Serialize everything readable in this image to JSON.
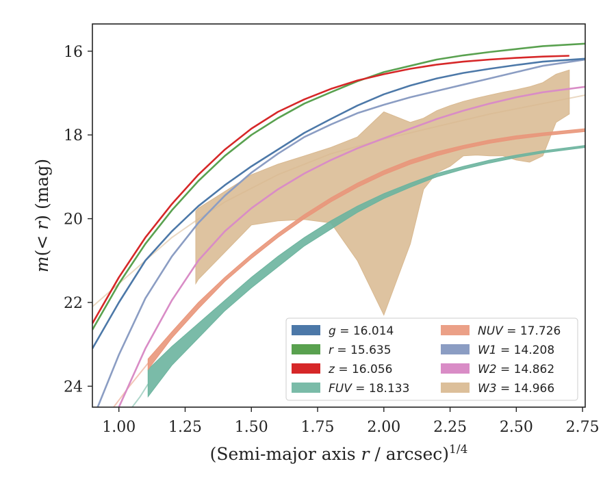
{
  "chart_data": {
    "type": "line",
    "xlabel": "(Semi-major axis ",
    "xlabel_var": "r",
    "xlabel_tail": " / arcsec)",
    "xlabel_sup": "1/4",
    "ylabel_pre": "m(< ",
    "ylabel_var": "r",
    "ylabel_post": ") (mag)",
    "xlim": [
      0.9,
      2.76
    ],
    "ylim": [
      24.5,
      15.35
    ],
    "y_inverted": true,
    "x_ticks": [
      "1.00",
      "1.25",
      "1.50",
      "1.75",
      "2.00",
      "2.25",
      "2.50",
      "2.75"
    ],
    "y_ticks": [
      "16",
      "18",
      "20",
      "22",
      "24"
    ],
    "legend_placement": "lower-right",
    "grid": false,
    "series": [
      {
        "name": "g = 16.014",
        "var": "g",
        "value": "16.014",
        "color": "#4c78a8",
        "kind": "line",
        "legend_col": 0,
        "x": [
          0.9,
          1.0,
          1.1,
          1.2,
          1.3,
          1.4,
          1.5,
          1.6,
          1.7,
          1.8,
          1.9,
          2.0,
          2.1,
          2.2,
          2.3,
          2.4,
          2.5,
          2.6,
          2.76
        ],
        "y": [
          23.1,
          22.0,
          21.0,
          20.3,
          19.7,
          19.2,
          18.75,
          18.35,
          17.95,
          17.62,
          17.3,
          17.03,
          16.82,
          16.65,
          16.52,
          16.42,
          16.33,
          16.25,
          16.18
        ]
      },
      {
        "name": "r = 15.635",
        "var": "r",
        "value": "15.635",
        "color": "#59a14f",
        "kind": "line",
        "legend_col": 0,
        "x": [
          0.9,
          1.0,
          1.1,
          1.2,
          1.3,
          1.4,
          1.5,
          1.6,
          1.7,
          1.8,
          1.9,
          2.0,
          2.1,
          2.2,
          2.3,
          2.4,
          2.5,
          2.6,
          2.76
        ],
        "y": [
          22.65,
          21.55,
          20.6,
          19.8,
          19.1,
          18.5,
          18.0,
          17.6,
          17.25,
          16.98,
          16.72,
          16.5,
          16.35,
          16.2,
          16.1,
          16.02,
          15.95,
          15.88,
          15.82
        ]
      },
      {
        "name": "z = 16.056",
        "var": "z",
        "value": "16.056",
        "color": "#d62728",
        "kind": "line",
        "legend_col": 0,
        "x": [
          0.9,
          1.0,
          1.1,
          1.2,
          1.3,
          1.4,
          1.5,
          1.6,
          1.7,
          1.8,
          1.9,
          2.0,
          2.1,
          2.2,
          2.3,
          2.4,
          2.5,
          2.6,
          2.7
        ],
        "y": [
          22.5,
          21.4,
          20.45,
          19.65,
          18.95,
          18.35,
          17.85,
          17.45,
          17.15,
          16.9,
          16.7,
          16.55,
          16.42,
          16.32,
          16.25,
          16.2,
          16.16,
          16.13,
          16.11
        ]
      },
      {
        "name": "FUV = 18.133",
        "var": "FUV",
        "value": "18.133",
        "color": "#6cb49e",
        "kind": "band",
        "legend_col": 0,
        "x": [
          1.11,
          1.2,
          1.3,
          1.4,
          1.5,
          1.6,
          1.7,
          1.8,
          1.9,
          2.0,
          2.1,
          2.2,
          2.3,
          2.4,
          2.5,
          2.6,
          2.76
        ],
        "y_low": [
          23.6,
          23.05,
          22.5,
          21.95,
          21.4,
          20.9,
          20.45,
          20.05,
          19.7,
          19.4,
          19.15,
          18.92,
          18.75,
          18.6,
          18.48,
          18.38,
          18.25
        ],
        "y_high": [
          24.25,
          23.5,
          22.85,
          22.2,
          21.65,
          21.15,
          20.65,
          20.25,
          19.85,
          19.52,
          19.25,
          19.0,
          18.82,
          18.67,
          18.54,
          18.43,
          18.3
        ],
        "ext_x": [
          1.05,
          1.08,
          1.11
        ],
        "ext_y": [
          24.5,
          24.25,
          23.95
        ]
      },
      {
        "name": "NUV = 17.726",
        "var": "NUV",
        "value": "17.726",
        "color": "#e9967a",
        "kind": "band",
        "legend_col": 1,
        "x": [
          1.11,
          1.2,
          1.3,
          1.4,
          1.5,
          1.6,
          1.7,
          1.8,
          1.9,
          2.0,
          2.1,
          2.2,
          2.3,
          2.4,
          2.5,
          2.6,
          2.76
        ],
        "y_low": [
          23.35,
          22.7,
          22.0,
          21.4,
          20.85,
          20.35,
          19.9,
          19.5,
          19.15,
          18.85,
          18.6,
          18.4,
          18.25,
          18.12,
          18.02,
          17.95,
          17.85
        ],
        "y_high": [
          23.6,
          22.85,
          22.15,
          21.5,
          20.95,
          20.45,
          20.0,
          19.6,
          19.25,
          18.95,
          18.7,
          18.5,
          18.33,
          18.2,
          18.1,
          18.02,
          17.92
        ],
        "ext_x": [
          0.98,
          1.04,
          1.11
        ],
        "ext_y": [
          24.5,
          24.0,
          23.45
        ]
      },
      {
        "name": "W1 = 14.208",
        "var": "W1",
        "value": "14.208",
        "color": "#8b9dc3",
        "kind": "line",
        "legend_col": 1,
        "x": [
          0.92,
          1.0,
          1.1,
          1.2,
          1.3,
          1.4,
          1.5,
          1.6,
          1.7,
          1.8,
          1.9,
          2.0,
          2.1,
          2.2,
          2.3,
          2.4,
          2.5,
          2.6,
          2.76
        ],
        "y": [
          24.5,
          23.25,
          21.9,
          20.9,
          20.1,
          19.45,
          18.9,
          18.45,
          18.05,
          17.75,
          17.48,
          17.28,
          17.1,
          16.95,
          16.8,
          16.65,
          16.5,
          16.35,
          16.2
        ]
      },
      {
        "name": "W2 = 14.862",
        "var": "W2",
        "value": "14.862",
        "color": "#d98cc6",
        "kind": "line",
        "legend_col": 1,
        "x": [
          1.0,
          1.1,
          1.2,
          1.3,
          1.4,
          1.5,
          1.6,
          1.7,
          1.8,
          1.9,
          2.0,
          2.1,
          2.2,
          2.3,
          2.4,
          2.5,
          2.6,
          2.76
        ],
        "y": [
          24.5,
          23.1,
          21.95,
          21.0,
          20.3,
          19.75,
          19.3,
          18.92,
          18.6,
          18.32,
          18.08,
          17.85,
          17.62,
          17.42,
          17.25,
          17.1,
          16.98,
          16.85
        ]
      },
      {
        "name": "W3 = 14.966",
        "var": "W3",
        "value": "14.966",
        "color": "#d8b88f",
        "kind": "band",
        "legend_col": 1,
        "x": [
          1.29,
          1.3,
          1.4,
          1.5,
          1.6,
          1.7,
          1.8,
          1.9,
          2.0,
          2.1,
          2.15,
          2.2,
          2.25,
          2.3,
          2.35,
          2.4,
          2.45,
          2.5,
          2.55,
          2.6,
          2.65,
          2.7
        ],
        "y_low": [
          21.55,
          21.45,
          20.8,
          20.15,
          20.05,
          20.02,
          20.1,
          21.0,
          22.3,
          20.6,
          19.3,
          18.9,
          18.75,
          18.5,
          18.48,
          18.5,
          18.5,
          18.6,
          18.65,
          18.5,
          17.7,
          17.5
        ],
        "y_high": [
          19.82,
          19.75,
          19.35,
          18.95,
          18.7,
          18.5,
          18.3,
          18.05,
          17.45,
          17.7,
          17.6,
          17.42,
          17.3,
          17.2,
          17.12,
          17.05,
          16.98,
          16.92,
          16.85,
          16.75,
          16.55,
          16.45
        ],
        "ext_x": [
          0.9,
          1.0,
          1.1,
          1.2,
          1.29,
          1.4,
          1.6,
          1.8,
          2.0,
          2.2,
          2.4,
          2.6,
          2.76
        ],
        "ext_y": [
          22.1,
          21.55,
          21.0,
          20.45,
          20.05,
          19.6,
          18.95,
          18.45,
          18.1,
          17.8,
          17.5,
          17.25,
          17.05
        ]
      }
    ]
  }
}
